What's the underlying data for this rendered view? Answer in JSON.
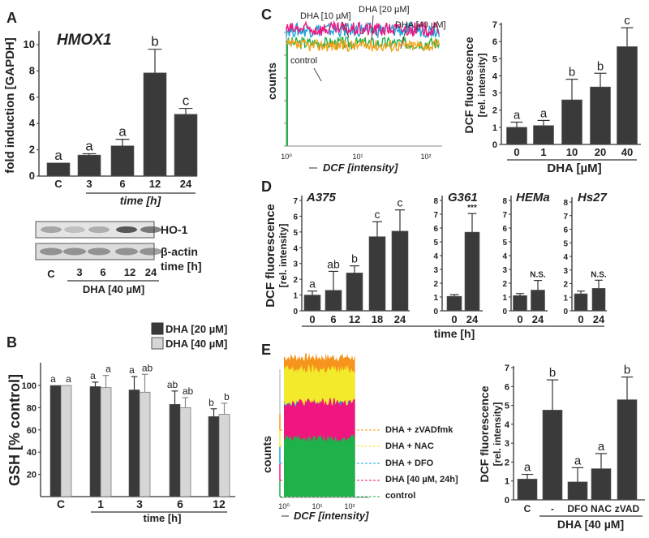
{
  "panel_letters": {
    "a": "A",
    "b": "B",
    "c": "C",
    "d": "D",
    "e": "E"
  },
  "western_blot": {
    "bands": [
      "HO-1",
      "β-actin"
    ],
    "time_label": "time [h]",
    "lanes": [
      "C",
      "3",
      "6",
      "12",
      "24"
    ],
    "treatment": "DHA [40 µM]"
  },
  "colors": {
    "bar": "#3a3a3a",
    "bar_light": "#d6d6d6",
    "control": "#1fb14a",
    "dha10": "#1aa3dc",
    "dha20": "#f7a21b",
    "dha40": "#f0167f",
    "nac": "#f2ea2a",
    "zvad": "#f7941d"
  },
  "chart_data": [
    {
      "id": "A",
      "type": "bar",
      "title": "HMOX1",
      "ylabel": "fold induction [GAPDH]",
      "xlabel": "time [h]",
      "categories": [
        "C",
        "3",
        "6",
        "12",
        "24"
      ],
      "values": [
        1.0,
        1.6,
        2.3,
        7.85,
        4.7
      ],
      "errors": [
        0,
        0.1,
        0.5,
        1.8,
        0.45
      ],
      "sig_labels": [
        "a",
        "a",
        "a",
        "b",
        "c"
      ],
      "ylim": [
        0,
        11
      ],
      "yticks": [
        "0",
        "2",
        "4",
        "6",
        "8",
        "10"
      ]
    },
    {
      "id": "B",
      "type": "bar",
      "ylabel": "GSH [% control]",
      "xlabel": "time [h]",
      "categories": [
        "C",
        "1",
        "3",
        "6",
        "12"
      ],
      "legend": [
        "DHA [20 µM]",
        "DHA [40 µM]"
      ],
      "legend_position": "top-right",
      "series": [
        {
          "name": "DHA [20 µM]",
          "values": [
            100,
            99,
            96,
            83,
            72
          ],
          "errors": [
            0,
            4,
            12,
            12,
            7
          ],
          "sig_labels": [
            "a",
            "a",
            "a",
            "ab",
            "b"
          ]
        },
        {
          "name": "DHA [40 µM]",
          "values": [
            100,
            98,
            94,
            80,
            74
          ],
          "errors": [
            0,
            11,
            16,
            9,
            10
          ],
          "sig_labels": [
            "a",
            "a",
            "ab",
            "ab",
            "b"
          ]
        }
      ],
      "ylim": [
        0,
        120
      ],
      "yticks": [
        "20",
        "40",
        "60",
        "80",
        "100"
      ]
    },
    {
      "id": "C-histogram",
      "type": "line",
      "ylabel": "counts",
      "xlabel": "DCF [intensity]",
      "xscale": "log",
      "xlim": [
        1,
        160
      ],
      "xticks": [
        "10⁰",
        "10¹",
        "10²"
      ],
      "series": [
        {
          "name": "control",
          "peak_intensity": 5.5
        },
        {
          "name": "DHA [10 µM]",
          "peak_intensity": 9.5
        },
        {
          "name": "DHA [20 µM]",
          "peak_intensity": 18
        },
        {
          "name": "DHA [40 µM]",
          "peak_intensity": 32
        }
      ]
    },
    {
      "id": "C-bar",
      "type": "bar",
      "ylabel": "DCF fluorescence",
      "ylabel2": "[rel. intensity]",
      "xlabel": "DHA [µM]",
      "categories": [
        "0",
        "1",
        "10",
        "20",
        "40"
      ],
      "values": [
        1.0,
        1.1,
        2.6,
        3.35,
        5.7
      ],
      "errors": [
        0.3,
        0.3,
        1.2,
        0.8,
        1.1
      ],
      "sig_labels": [
        "a",
        "a",
        "b",
        "b",
        "c"
      ],
      "ylim": [
        0,
        7
      ],
      "yticks": [
        "0",
        "1",
        "2",
        "3",
        "4",
        "5",
        "6",
        "7"
      ]
    },
    {
      "id": "D",
      "type": "bar",
      "ylabel": "DCF fluorescence",
      "ylabel2": "[rel. intensity]",
      "xlabel": "time [h]",
      "subplots": [
        {
          "title": "A375",
          "categories": [
            "0",
            "6",
            "12",
            "18",
            "24"
          ],
          "values": [
            1.0,
            1.3,
            2.4,
            4.7,
            5.05
          ],
          "errors": [
            0.25,
            1.2,
            0.45,
            0.95,
            1.35
          ],
          "sig_labels": [
            "a",
            "ab",
            "b",
            "c",
            "c"
          ],
          "ylim": [
            0,
            7
          ],
          "yticks": [
            "0",
            "1",
            "2",
            "3",
            "4",
            "5",
            "6",
            "7"
          ]
        },
        {
          "title": "G361",
          "categories": [
            "0",
            "24"
          ],
          "values": [
            1.05,
            5.7
          ],
          "errors": [
            0.12,
            1.35
          ],
          "sig_labels": [
            "",
            "***"
          ],
          "ylim": [
            0,
            8
          ],
          "yticks": [
            "0",
            "1",
            "2",
            "3",
            "4",
            "5",
            "6",
            "7",
            "8"
          ]
        },
        {
          "title": "HEMa",
          "categories": [
            "0",
            "24"
          ],
          "values": [
            1.1,
            1.5
          ],
          "errors": [
            0.15,
            0.7
          ],
          "sig_labels": [
            "",
            "N.S."
          ],
          "ylim": [
            0,
            8
          ],
          "yticks": [
            "0",
            "1",
            "2",
            "3",
            "4",
            "5",
            "6",
            "7",
            "8"
          ]
        },
        {
          "title": "Hs27",
          "categories": [
            "0",
            "24"
          ],
          "values": [
            1.25,
            1.65
          ],
          "errors": [
            0.2,
            0.6
          ],
          "sig_labels": [
            "",
            "N.S."
          ],
          "ylim": [
            0,
            8
          ],
          "yticks": [
            "0",
            "1",
            "2",
            "3",
            "4",
            "5",
            "6",
            "7",
            "8"
          ]
        }
      ]
    },
    {
      "id": "E-histogram",
      "type": "area",
      "ylabel": "counts",
      "xlabel": "DCF [intensity]",
      "xscale": "log",
      "xticks": [
        "10⁰",
        "10¹",
        "10²"
      ],
      "series": [
        {
          "name": "DHA + zVADfmk",
          "peak_intensity": 60
        },
        {
          "name": "DHA + NAC",
          "peak_intensity": 16
        },
        {
          "name": "DHA + DFO",
          "peak_intensity": 13
        },
        {
          "name": "DHA [40 µM, 24h]",
          "peak_intensity": 60
        },
        {
          "name": "control",
          "peak_intensity": 14
        }
      ]
    },
    {
      "id": "E-bar",
      "type": "bar",
      "ylabel": "DCF fluorescence",
      "ylabel2": "[rel. intensity]",
      "xlabel": "DHA [40 µM]",
      "categories": [
        "C",
        "-",
        "DFO",
        "NAC",
        "zVAD"
      ],
      "values": [
        1.1,
        4.75,
        0.95,
        1.65,
        5.3
      ],
      "errors": [
        0.25,
        1.6,
        0.75,
        0.8,
        1.2
      ],
      "sig_labels": [
        "a",
        "b",
        "a",
        "a",
        "b"
      ],
      "ylim": [
        0,
        7
      ],
      "yticks": [
        "0",
        "1",
        "2",
        "3",
        "4",
        "5",
        "6",
        "7"
      ]
    }
  ]
}
